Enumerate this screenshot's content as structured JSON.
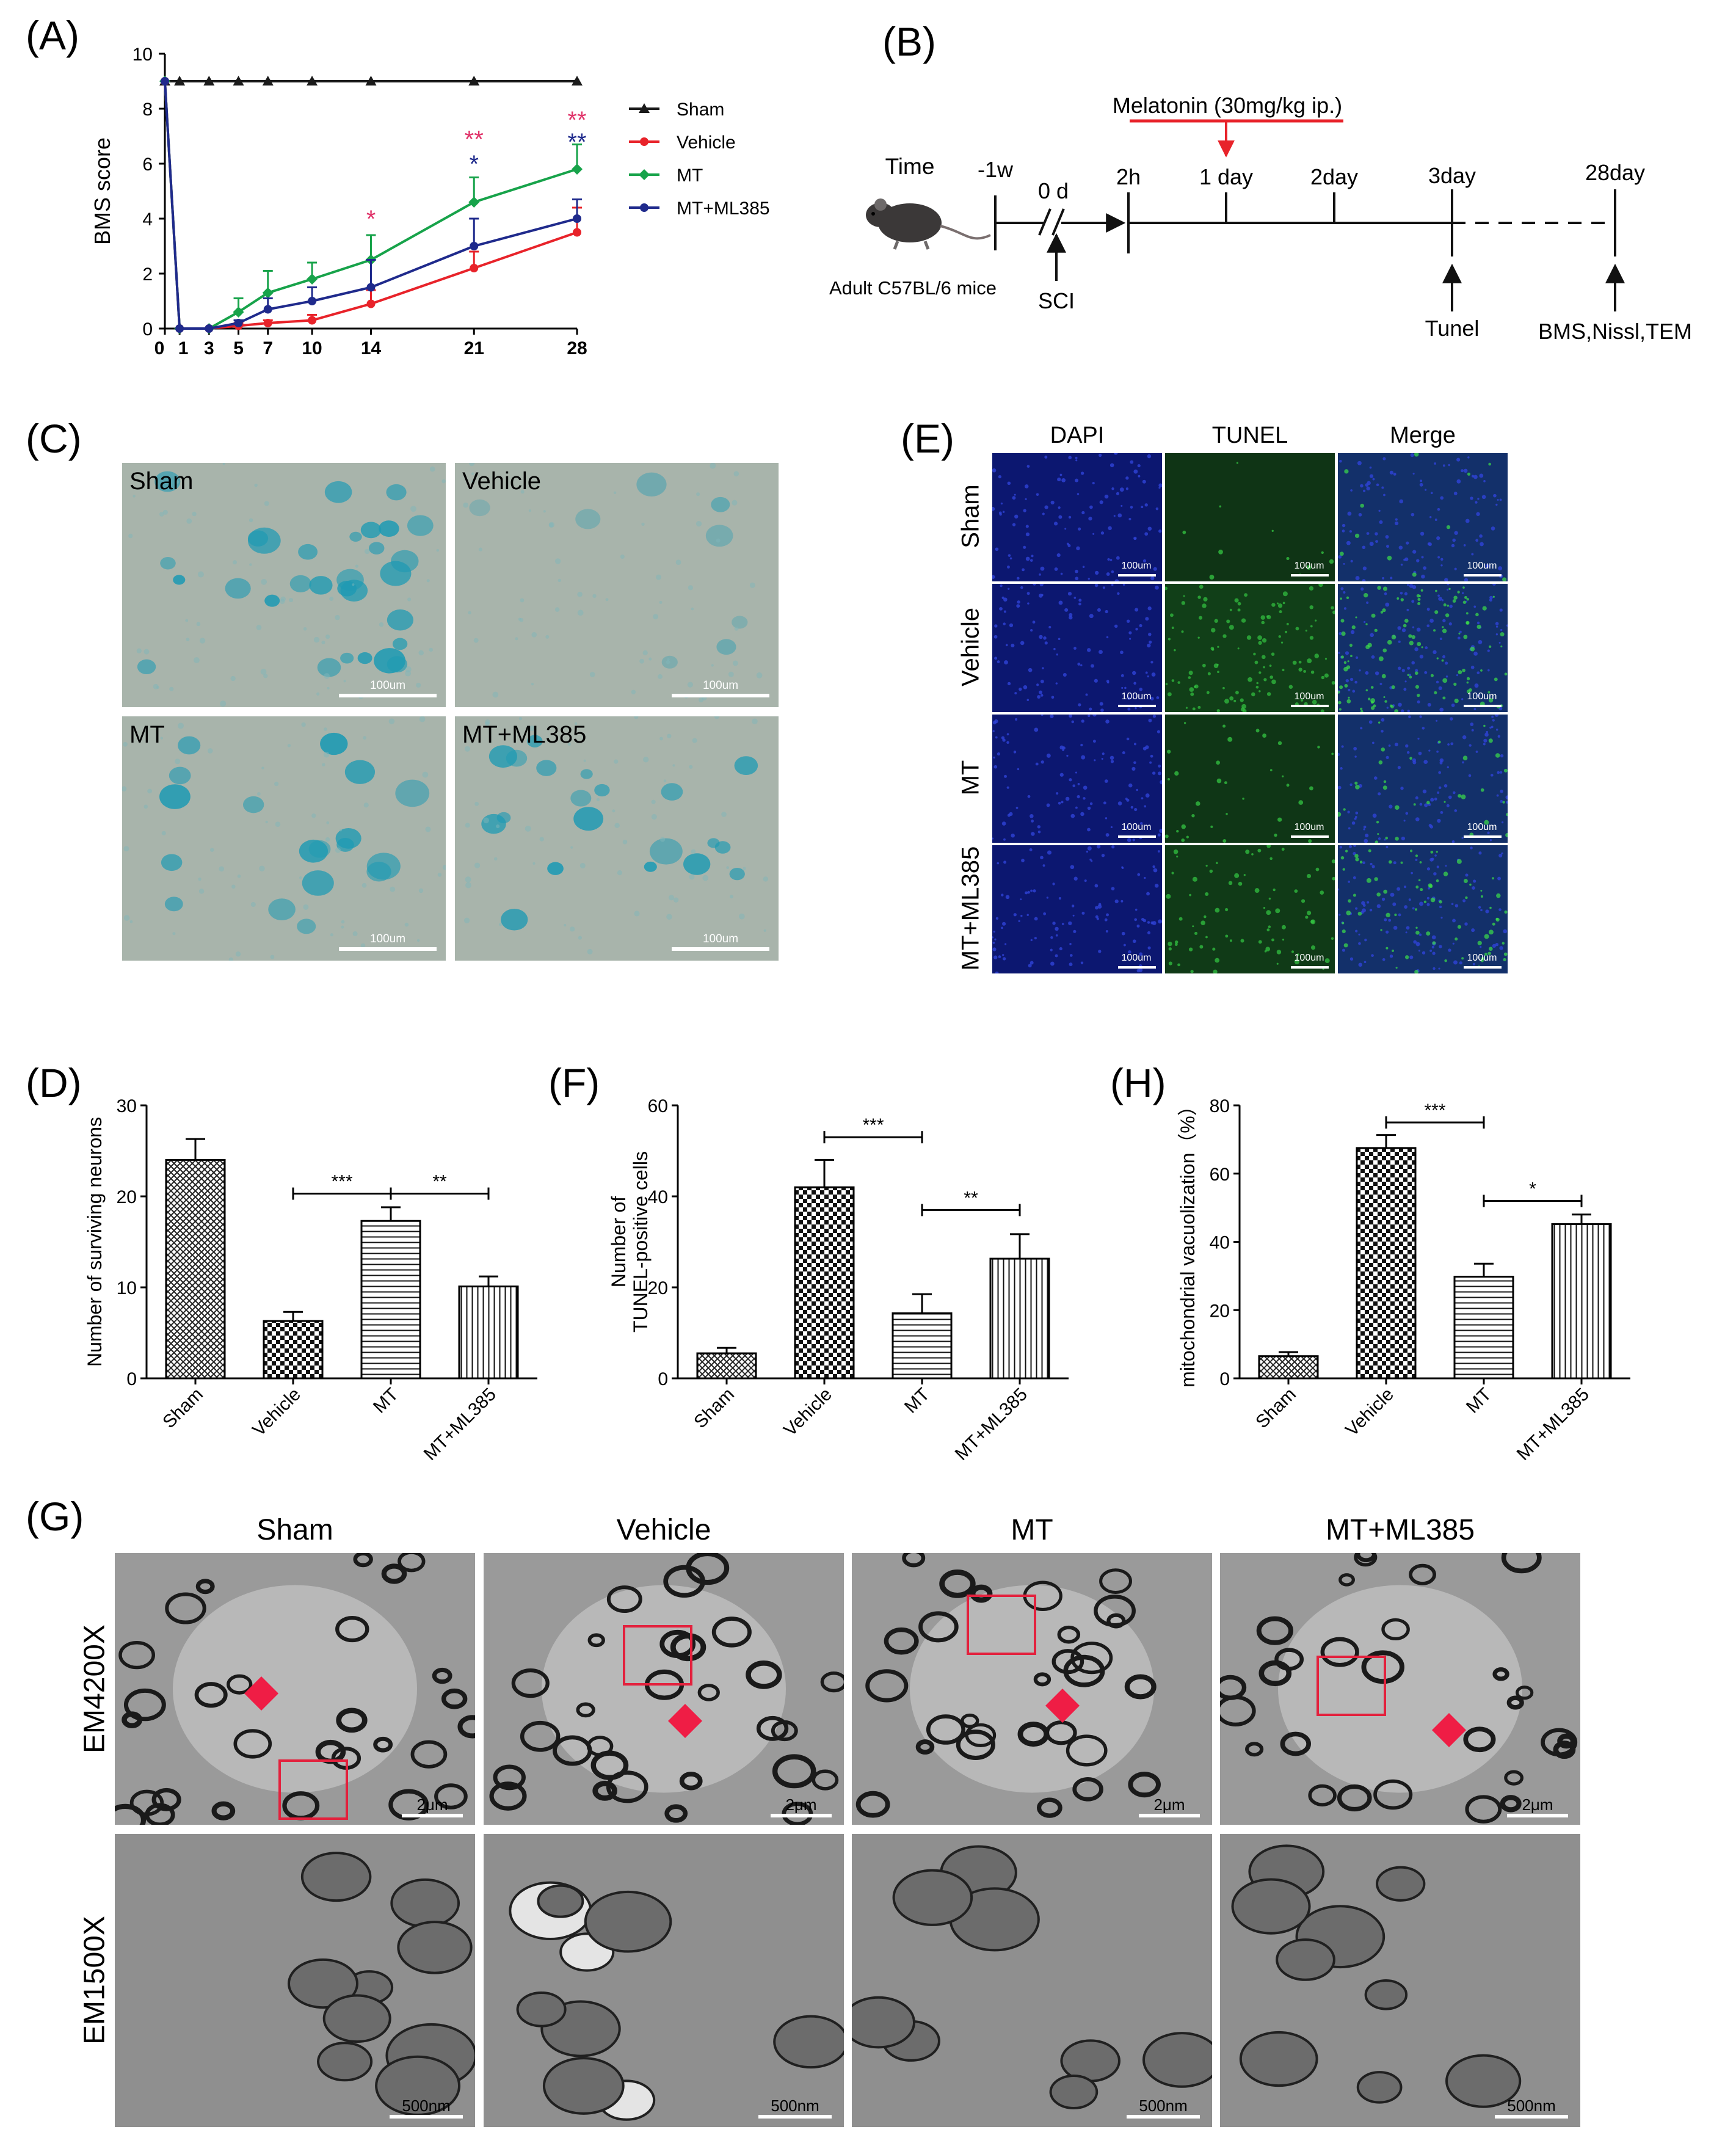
{
  "panels": {
    "A": "(A)",
    "B": "(B)",
    "C": "(C)",
    "D": "(D)",
    "E": "(E)",
    "F": "(F)",
    "G": "(G)",
    "H": "(H)"
  },
  "chart_data": [
    {
      "id": "A",
      "type": "line",
      "ylabel": "BMS score",
      "x": [
        0,
        1,
        3,
        5,
        7,
        10,
        14,
        21,
        28
      ],
      "xticks": [
        0,
        1,
        3,
        5,
        7,
        10,
        14,
        21,
        28
      ],
      "yticks": [
        0,
        2,
        4,
        6,
        8,
        10
      ],
      "ylim": [
        0,
        10
      ],
      "xlim": [
        0,
        28
      ],
      "legend": "right",
      "series": [
        {
          "name": "Sham",
          "color": "#1a1a1a",
          "marker": "triangle",
          "values": [
            9,
            9,
            9,
            9,
            9,
            9,
            9,
            9,
            9
          ],
          "err": [
            0,
            0,
            0,
            0,
            0,
            0,
            0,
            0,
            0
          ]
        },
        {
          "name": "Vehicle",
          "color": "#e8232a",
          "marker": "circle",
          "values": [
            9,
            0,
            0,
            0.1,
            0.2,
            0.3,
            0.9,
            2.2,
            3.5
          ],
          "err": [
            0,
            0,
            0,
            0.1,
            0.1,
            0.2,
            0.5,
            0.6,
            0.9
          ]
        },
        {
          "name": "MT",
          "color": "#17a34a",
          "marker": "diamond",
          "values": [
            9,
            0,
            0,
            0.6,
            1.3,
            1.8,
            2.5,
            4.6,
            5.8
          ],
          "err": [
            0,
            0,
            0,
            0.5,
            0.8,
            0.6,
            0.9,
            0.9,
            0.9
          ]
        },
        {
          "name": "MT+ML385",
          "color": "#1f2a8c",
          "marker": "circle",
          "values": [
            9,
            0,
            0,
            0.2,
            0.7,
            1.0,
            1.5,
            3.0,
            4.0
          ],
          "err": [
            0,
            0,
            0,
            0.1,
            0.4,
            0.5,
            1.0,
            1.0,
            0.7
          ]
        }
      ],
      "annotations": [
        {
          "x": 14,
          "text": "*",
          "color": "#e0346a",
          "y": 4.0
        },
        {
          "x": 21,
          "text": "**",
          "color": "#e0346a",
          "y": 6.9
        },
        {
          "x": 21,
          "text": "*",
          "color": "#1f2a8c",
          "y": 6.0
        },
        {
          "x": 28,
          "text": "**",
          "color": "#e0346a",
          "y": 7.6
        },
        {
          "x": 28,
          "text": "**",
          "color": "#1f2a8c",
          "y": 6.8
        }
      ]
    },
    {
      "id": "D",
      "type": "bar",
      "ylabel": "Number of surviving neurons",
      "categories": [
        "Sham",
        "Vehicle",
        "MT",
        "MT+ML385"
      ],
      "values": [
        24,
        6.3,
        17.3,
        10.1
      ],
      "err": [
        2.3,
        1.0,
        1.5,
        1.1
      ],
      "ylim": [
        0,
        30
      ],
      "yticks": [
        0,
        10,
        20,
        30
      ],
      "patterns": [
        "cross",
        "checker",
        "hlines",
        "vlines"
      ],
      "sig": [
        {
          "from": 1,
          "to": 2,
          "y": 20.3,
          "text": "***"
        },
        {
          "from": 2,
          "to": 3,
          "y": 20.3,
          "text": "**"
        }
      ]
    },
    {
      "id": "F",
      "type": "bar",
      "ylabel": "Number of TUNEL-positive cells",
      "categories": [
        "Sham",
        "Vehicle",
        "MT",
        "MT+ML385"
      ],
      "values": [
        5.5,
        42,
        14.3,
        26.3
      ],
      "err": [
        1.2,
        6,
        4.2,
        5.4
      ],
      "ylim": [
        0,
        60
      ],
      "yticks": [
        0,
        20,
        40,
        60
      ],
      "patterns": [
        "cross",
        "checker",
        "hlines",
        "vlines"
      ],
      "sig": [
        {
          "from": 1,
          "to": 2,
          "y": 53,
          "text": "***"
        },
        {
          "from": 2,
          "to": 3,
          "y": 37,
          "text": "**"
        }
      ]
    },
    {
      "id": "H",
      "type": "bar",
      "ylabel": "mitochondrial vacuolization（%）",
      "categories": [
        "Sham",
        "Vehicle",
        "MT",
        "MT+ML385"
      ],
      "values": [
        6.5,
        67.5,
        29.8,
        45.2
      ],
      "err": [
        1.2,
        3.8,
        3.8,
        2.8
      ],
      "ylim": [
        0,
        80
      ],
      "yticks": [
        0,
        20,
        40,
        60,
        80
      ],
      "patterns": [
        "cross",
        "checker",
        "hlines",
        "vlines"
      ],
      "sig": [
        {
          "from": 1,
          "to": 2,
          "y": 75,
          "text": "***"
        },
        {
          "from": 2,
          "to": 3,
          "y": 52,
          "text": "*"
        }
      ]
    }
  ],
  "timeline": {
    "time": "Time",
    "mice": "Adult C57BL/6 mice",
    "drug": "Melatonin (30mg/kg ip.)",
    "ticks": [
      "-1w",
      "0 d",
      "2h",
      "1 day",
      "2day",
      "3day",
      "28day"
    ],
    "sci": "SCI",
    "tunel": "Tunel",
    "end": "BMS,Nissl,TEM"
  },
  "panelC": {
    "labels": [
      "Sham",
      "Vehicle",
      "MT",
      "MT+ML385"
    ],
    "scale": "100um"
  },
  "panelE": {
    "cols": [
      "DAPI",
      "TUNEL",
      "Merge"
    ],
    "rows": [
      "Sham",
      "Vehicle",
      "MT",
      "MT+ML385"
    ],
    "scale": "100um"
  },
  "panelG": {
    "cols": [
      "Sham",
      "Vehicle",
      "MT",
      "MT+ML385"
    ],
    "rows": [
      "EM4200X",
      "EM1500X"
    ],
    "scale_top": "2μm",
    "scale_bottom": "500nm"
  }
}
